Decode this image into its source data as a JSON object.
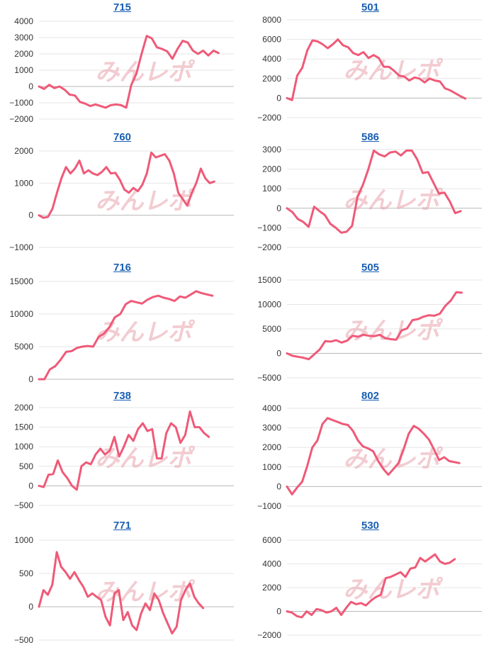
{
  "colors": {
    "series": "#ef5a78",
    "title_link": "#1a5fb4",
    "grid": "#e6e6e6",
    "watermark": "#e8a3ad"
  },
  "watermark": "みんレポ",
  "chart_data": [
    {
      "type": "line",
      "title": "715",
      "yticks": [
        "4000",
        "3000",
        "2000",
        "1000",
        "0",
        "−1000",
        "−2000"
      ],
      "ylim": [
        -2000,
        4000
      ],
      "grid": true,
      "series": [
        {
          "values": [
            0,
            -150,
            100,
            -100,
            0,
            -200,
            -500,
            -550,
            -950,
            -1050,
            -1200,
            -1100,
            -1200,
            -1300,
            -1150,
            -1100,
            -1150,
            -1300,
            100,
            800,
            2000,
            3100,
            2950,
            2400,
            2300,
            2150,
            1700,
            2300,
            2800,
            2700,
            2200,
            2000,
            2200,
            1900,
            2200,
            2050
          ],
          "xfrac": 0.9216
        }
      ]
    },
    {
      "type": "line",
      "title": "501",
      "yticks": [
        "8000",
        "6000",
        "4000",
        "2000",
        "0",
        "−2000"
      ],
      "ylim": [
        -2000,
        8000
      ],
      "grid": true,
      "series": [
        {
          "values": [
            0,
            -200,
            2300,
            3100,
            4900,
            5900,
            5800,
            5500,
            5100,
            5500,
            6000,
            5400,
            5200,
            4600,
            4400,
            4700,
            4100,
            4400,
            4100,
            3200,
            3200,
            2800,
            2300,
            2200,
            1800,
            2100,
            2000,
            1600,
            2000,
            1800,
            1700,
            1000,
            800,
            500,
            200,
            -50
          ],
          "xfrac": 0.9155
        }
      ]
    },
    {
      "type": "line",
      "title": "760",
      "yticks": [
        "2000",
        "1000",
        "0",
        "−1000"
      ],
      "ylim": [
        -1000,
        2000
      ],
      "grid": true,
      "series": [
        {
          "values": [
            0,
            -80,
            -50,
            200,
            700,
            1150,
            1500,
            1300,
            1450,
            1700,
            1300,
            1400,
            1300,
            1250,
            1350,
            1500,
            1300,
            1320,
            1100,
            800,
            700,
            850,
            750,
            950,
            1300,
            1950,
            1800,
            1850,
            1900,
            1700,
            1300,
            700,
            500,
            300,
            700,
            1000,
            1450,
            1150,
            1000,
            1050
          ],
          "xfrac": 0.8996
        }
      ]
    },
    {
      "type": "line",
      "title": "586",
      "yticks": [
        "3000",
        "2000",
        "1000",
        "0",
        "−1000",
        "−2000"
      ],
      "ylim": [
        -2000,
        3000
      ],
      "grid": true,
      "series": [
        {
          "values": [
            0,
            -200,
            -550,
            -700,
            -950,
            80,
            -150,
            -350,
            -800,
            -1000,
            -1250,
            -1200,
            -900,
            600,
            1200,
            2000,
            2950,
            2750,
            2650,
            2850,
            2900,
            2700,
            2950,
            2950,
            2500,
            1800,
            1850,
            1300,
            750,
            800,
            350,
            -250,
            -150
          ],
          "xfrac": 0.8912
        }
      ]
    },
    {
      "type": "line",
      "title": "716",
      "yticks": [
        "15000",
        "10000",
        "5000",
        "0"
      ],
      "ylim": [
        0,
        15000
      ],
      "grid": true,
      "series": [
        {
          "values": [
            0,
            0,
            1500,
            2000,
            3000,
            4200,
            4300,
            4800,
            5000,
            5100,
            5000,
            6500,
            7000,
            8000,
            9500,
            10000,
            11500,
            12000,
            11800,
            11600,
            12200,
            12600,
            12800,
            12500,
            12300,
            12000,
            12700,
            12500,
            13000,
            13500,
            13200,
            13000,
            12800
          ],
          "xfrac": 0.8905
        }
      ]
    },
    {
      "type": "line",
      "title": "505",
      "yticks": [
        "15000",
        "10000",
        "5000",
        "0",
        "−5000"
      ],
      "ylim": [
        -5000,
        15000
      ],
      "grid": true,
      "series": [
        {
          "values": [
            0,
            -500,
            -700,
            -900,
            -1200,
            -200,
            800,
            2500,
            2400,
            2700,
            2200,
            2600,
            3600,
            3400,
            3800,
            3600,
            3500,
            3800,
            3100,
            2900,
            2800,
            4700,
            5100,
            6800,
            7000,
            7500,
            7800,
            7700,
            8100,
            9700,
            10800,
            12500,
            12400
          ],
          "xfrac": 0.8966
        }
      ]
    },
    {
      "type": "line",
      "title": "738",
      "yticks": [
        "2000",
        "1500",
        "1000",
        "500",
        "0",
        "−500"
      ],
      "ylim": [
        -500,
        2000
      ],
      "grid": true,
      "series": [
        {
          "values": [
            0,
            -30,
            280,
            300,
            650,
            350,
            200,
            0,
            -100,
            500,
            600,
            550,
            800,
            950,
            800,
            900,
            1250,
            750,
            1000,
            1300,
            1150,
            1450,
            1600,
            1400,
            1450,
            700,
            700,
            1350,
            1600,
            1500,
            1100,
            1300,
            1900,
            1500,
            1500,
            1350,
            1250
          ],
          "xfrac": 0.8716
        }
      ]
    },
    {
      "type": "line",
      "title": "802",
      "yticks": [
        "4000",
        "3000",
        "2000",
        "1000",
        "0",
        "−1000"
      ],
      "ylim": [
        -1000,
        4000
      ],
      "grid": true,
      "series": [
        {
          "values": [
            0,
            -400,
            -50,
            250,
            1050,
            2000,
            2350,
            3200,
            3500,
            3400,
            3300,
            3200,
            3150,
            2850,
            2350,
            2050,
            1950,
            1800,
            1300,
            900,
            600,
            900,
            1200,
            1900,
            2700,
            3100,
            2950,
            2700,
            2400,
            1900,
            1350,
            1500,
            1300,
            1250,
            1200
          ],
          "xfrac": 0.8848
        }
      ]
    },
    {
      "type": "line",
      "title": "771",
      "yticks": [
        "1000",
        "500",
        "0",
        "−500"
      ],
      "ylim": [
        -500,
        1000
      ],
      "grid": true,
      "series": [
        {
          "values": [
            0,
            250,
            180,
            330,
            820,
            600,
            520,
            420,
            520,
            400,
            300,
            150,
            200,
            150,
            100,
            -150,
            -280,
            200,
            250,
            -200,
            -80,
            -280,
            -350,
            -100,
            50,
            -50,
            200,
            100,
            -100,
            -250,
            -400,
            -300,
            100,
            250,
            350,
            150,
            50,
            -20
          ],
          "xfrac": 0.8427
        }
      ]
    },
    {
      "type": "line",
      "title": "530",
      "yticks": [
        "6000",
        "4000",
        "2000",
        "0",
        "−2000"
      ],
      "ylim": [
        -2000,
        6000
      ],
      "grid": true,
      "series": [
        {
          "values": [
            0,
            -100,
            -400,
            -500,
            0,
            -300,
            200,
            100,
            -100,
            0,
            300,
            -300,
            300,
            800,
            600,
            700,
            500,
            900,
            1200,
            1400,
            2800,
            2900,
            3100,
            3300,
            2900,
            3600,
            3700,
            4500,
            4200,
            4500,
            4800,
            4200,
            4000,
            4100,
            4400
          ],
          "xfrac": 0.8611
        }
      ]
    }
  ]
}
